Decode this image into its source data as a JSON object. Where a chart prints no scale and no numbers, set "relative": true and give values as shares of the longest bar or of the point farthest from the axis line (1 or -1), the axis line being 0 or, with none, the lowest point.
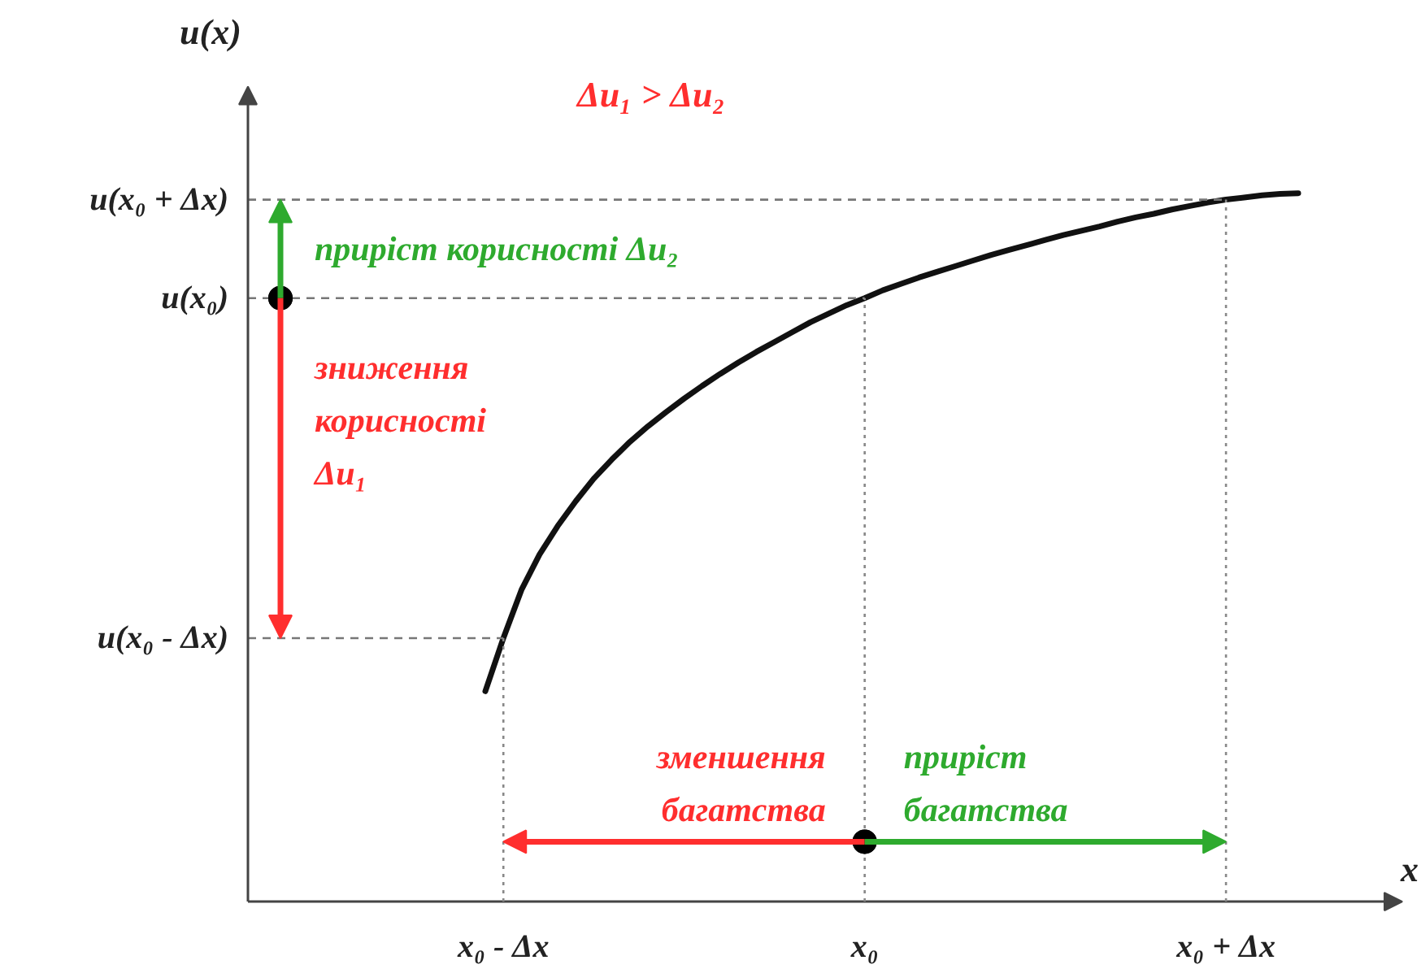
{
  "chart_data": {
    "type": "line",
    "title": "Δu₁ > Δu₂",
    "xlabel": "x",
    "relative": true,
    "categories": [
      null,
      "x₀ - Δx",
      null,
      null,
      null,
      null,
      null,
      null,
      null,
      null,
      null,
      null,
      null,
      null,
      null,
      null,
      null,
      null,
      null,
      null,
      null,
      "x₀",
      null,
      null,
      null,
      null,
      null,
      null,
      null,
      null,
      null,
      null,
      null,
      null,
      null,
      null,
      null,
      null,
      null,
      null,
      null,
      "x₀ + Δx",
      null,
      null,
      null,
      null
    ],
    "series": [
      {
        "color": "#111111",
        "values": [
          0.297,
          0.372,
          0.44,
          0.49,
          0.53,
          0.565,
          0.597,
          0.624,
          0.649,
          0.671,
          0.691,
          0.71,
          0.728,
          0.745,
          0.761,
          0.776,
          0.79,
          0.804,
          0.818,
          0.83,
          0.842,
          0.852,
          0.863,
          0.872,
          0.881,
          0.889,
          0.897,
          0.905,
          0.913,
          0.92,
          0.927,
          0.934,
          0.941,
          0.947,
          0.953,
          0.96,
          0.966,
          0.971,
          0.977,
          0.982,
          0.987,
          0.991,
          0.994,
          0.997,
          0.999,
          1.0
        ]
      }
    ],
    "ref_lines": [
      {
        "axis": "y",
        "value": 0.991,
        "label": "u(x₀ + Δx)",
        "color": "#777777",
        "line_style": "dashed"
      },
      {
        "axis": "y",
        "value": 0.852,
        "label": "u(x₀)",
        "color": "#777777",
        "line_style": "dashed"
      },
      {
        "axis": "y",
        "value": 0.372,
        "label": "u(x₀ - Δx)",
        "color": "#777777",
        "line_style": "dashed"
      },
      {
        "axis": "x",
        "value": "x₀ - Δx",
        "color": "#888888",
        "line_style": "dotted"
      },
      {
        "axis": "x",
        "value": "x₀",
        "color": "#888888",
        "line_style": "dotted"
      },
      {
        "axis": "x",
        "value": "x₀ + Δx",
        "color": "#888888",
        "line_style": "dotted"
      }
    ],
    "annotations": [
      "приріст корисності Δu₂",
      "зниження корисності Δu₁",
      "зменшення багатства",
      "приріст багатства",
      "u(x)"
    ]
  }
}
